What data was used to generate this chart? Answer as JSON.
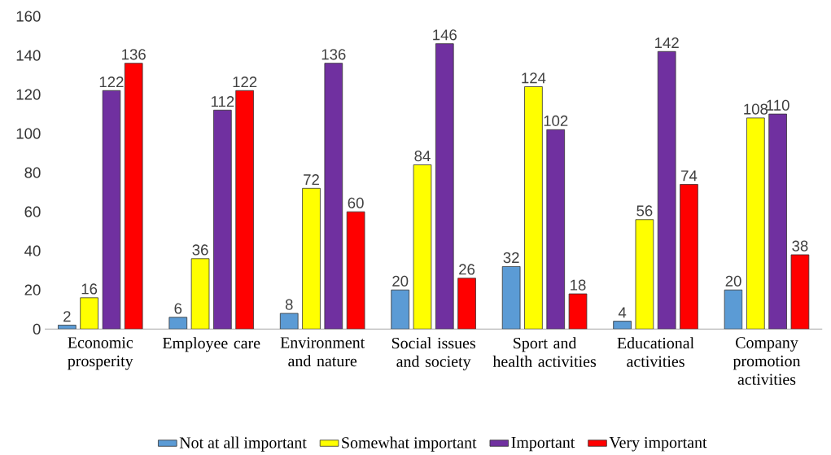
{
  "chart_data": {
    "type": "bar",
    "categories": [
      "Economic prosperity",
      "Employee care",
      "Environment and nature",
      "Social issues and society",
      "Sport and health activities",
      "Educational activities",
      "Company promotion activities"
    ],
    "series": [
      {
        "name": "Not at all important",
        "color": "#5b9bd5",
        "values": [
          2,
          6,
          8,
          20,
          32,
          4,
          20
        ]
      },
      {
        "name": "Somewhat important",
        "color": "#ffff00",
        "values": [
          16,
          36,
          72,
          84,
          124,
          56,
          108
        ]
      },
      {
        "name": "Important",
        "color": "#7030a0",
        "values": [
          122,
          112,
          136,
          146,
          102,
          142,
          110
        ]
      },
      {
        "name": "Very important",
        "color": "#ff0000",
        "values": [
          136,
          122,
          60,
          26,
          18,
          74,
          38
        ]
      }
    ],
    "ylim": [
      0,
      160
    ],
    "yticks": [
      0,
      20,
      40,
      60,
      80,
      100,
      120,
      140,
      160
    ],
    "grid": false,
    "legend": "bottom",
    "data_labels": true
  }
}
